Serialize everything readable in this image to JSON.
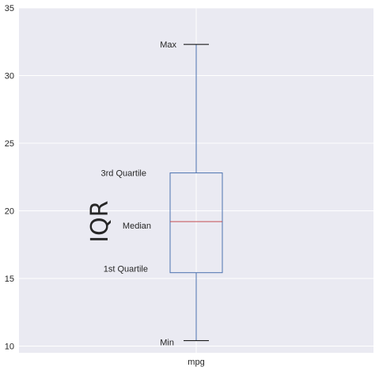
{
  "chart_data": {
    "type": "box",
    "categories": [
      "mpg"
    ],
    "series": [
      {
        "name": "mpg",
        "min": 10.4,
        "q1": 15.425,
        "median": 19.2,
        "q3": 22.8,
        "max": 32.3
      }
    ],
    "ylim": [
      9.5,
      35
    ],
    "yticks": [
      10,
      15,
      20,
      25,
      30,
      35
    ],
    "grid": true,
    "annotations": {
      "max": "Max",
      "q3": "3rd Quartile",
      "median": "Median",
      "q1": "1st Quartile",
      "min": "Min"
    },
    "side_label": "IQR"
  },
  "colors": {
    "plot_bg": "#eaeaf2",
    "grid": "#ffffff",
    "box": "#4c72b0",
    "median": "#c44e52",
    "caps": "#000000"
  }
}
